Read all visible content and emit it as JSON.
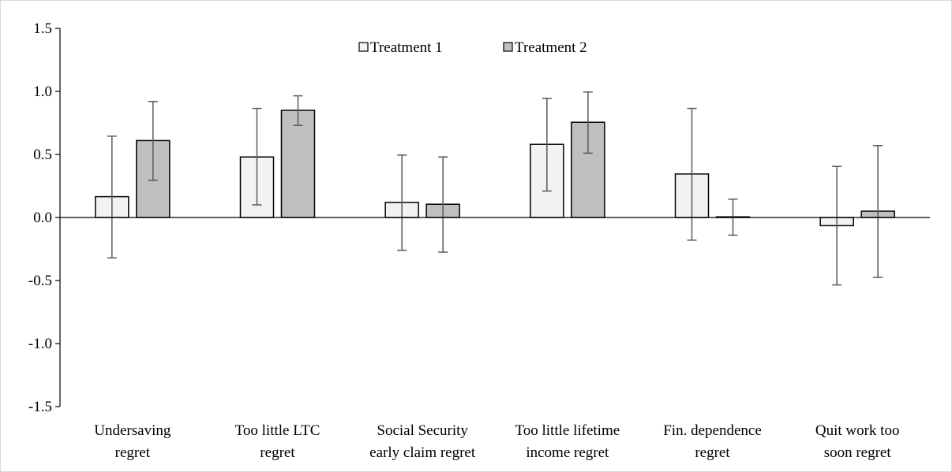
{
  "chart_data": {
    "type": "bar",
    "title": "",
    "xlabel": "",
    "ylabel": "",
    "ylim": [
      -1.5,
      1.5
    ],
    "yticks": [
      "1.5",
      "1.0",
      "0.5",
      "0.0",
      "-0.5",
      "-1.0",
      "-1.5"
    ],
    "ytick_values": [
      1.5,
      1.0,
      0.5,
      0.0,
      -0.5,
      -1.0,
      -1.5
    ],
    "categories": [
      [
        "Undersaving",
        "regret"
      ],
      [
        "Too little LTC",
        "regret"
      ],
      [
        "Social Security",
        "early claim regret"
      ],
      [
        "Too little lifetime",
        "income regret"
      ],
      [
        "Fin. dependence",
        "regret"
      ],
      [
        "Quit work too",
        "soon regret"
      ]
    ],
    "series": [
      {
        "name": "Treatment 1",
        "color": "#f2f2f2",
        "values": [
          0.165,
          0.48,
          0.12,
          0.58,
          0.345,
          -0.065
        ],
        "error_low": [
          -0.32,
          0.1,
          -0.26,
          0.21,
          -0.18,
          -0.535
        ],
        "error_high": [
          0.645,
          0.865,
          0.495,
          0.945,
          0.865,
          0.405
        ]
      },
      {
        "name": "Treatment 2",
        "color": "#bfbfbf",
        "values": [
          0.61,
          0.85,
          0.105,
          0.755,
          0.005,
          0.05
        ],
        "error_low": [
          0.295,
          0.73,
          -0.275,
          0.51,
          -0.14,
          -0.475
        ],
        "error_high": [
          0.92,
          0.965,
          0.48,
          0.995,
          0.145,
          0.57
        ]
      }
    ],
    "legend_position": "top-center",
    "grid": false
  }
}
